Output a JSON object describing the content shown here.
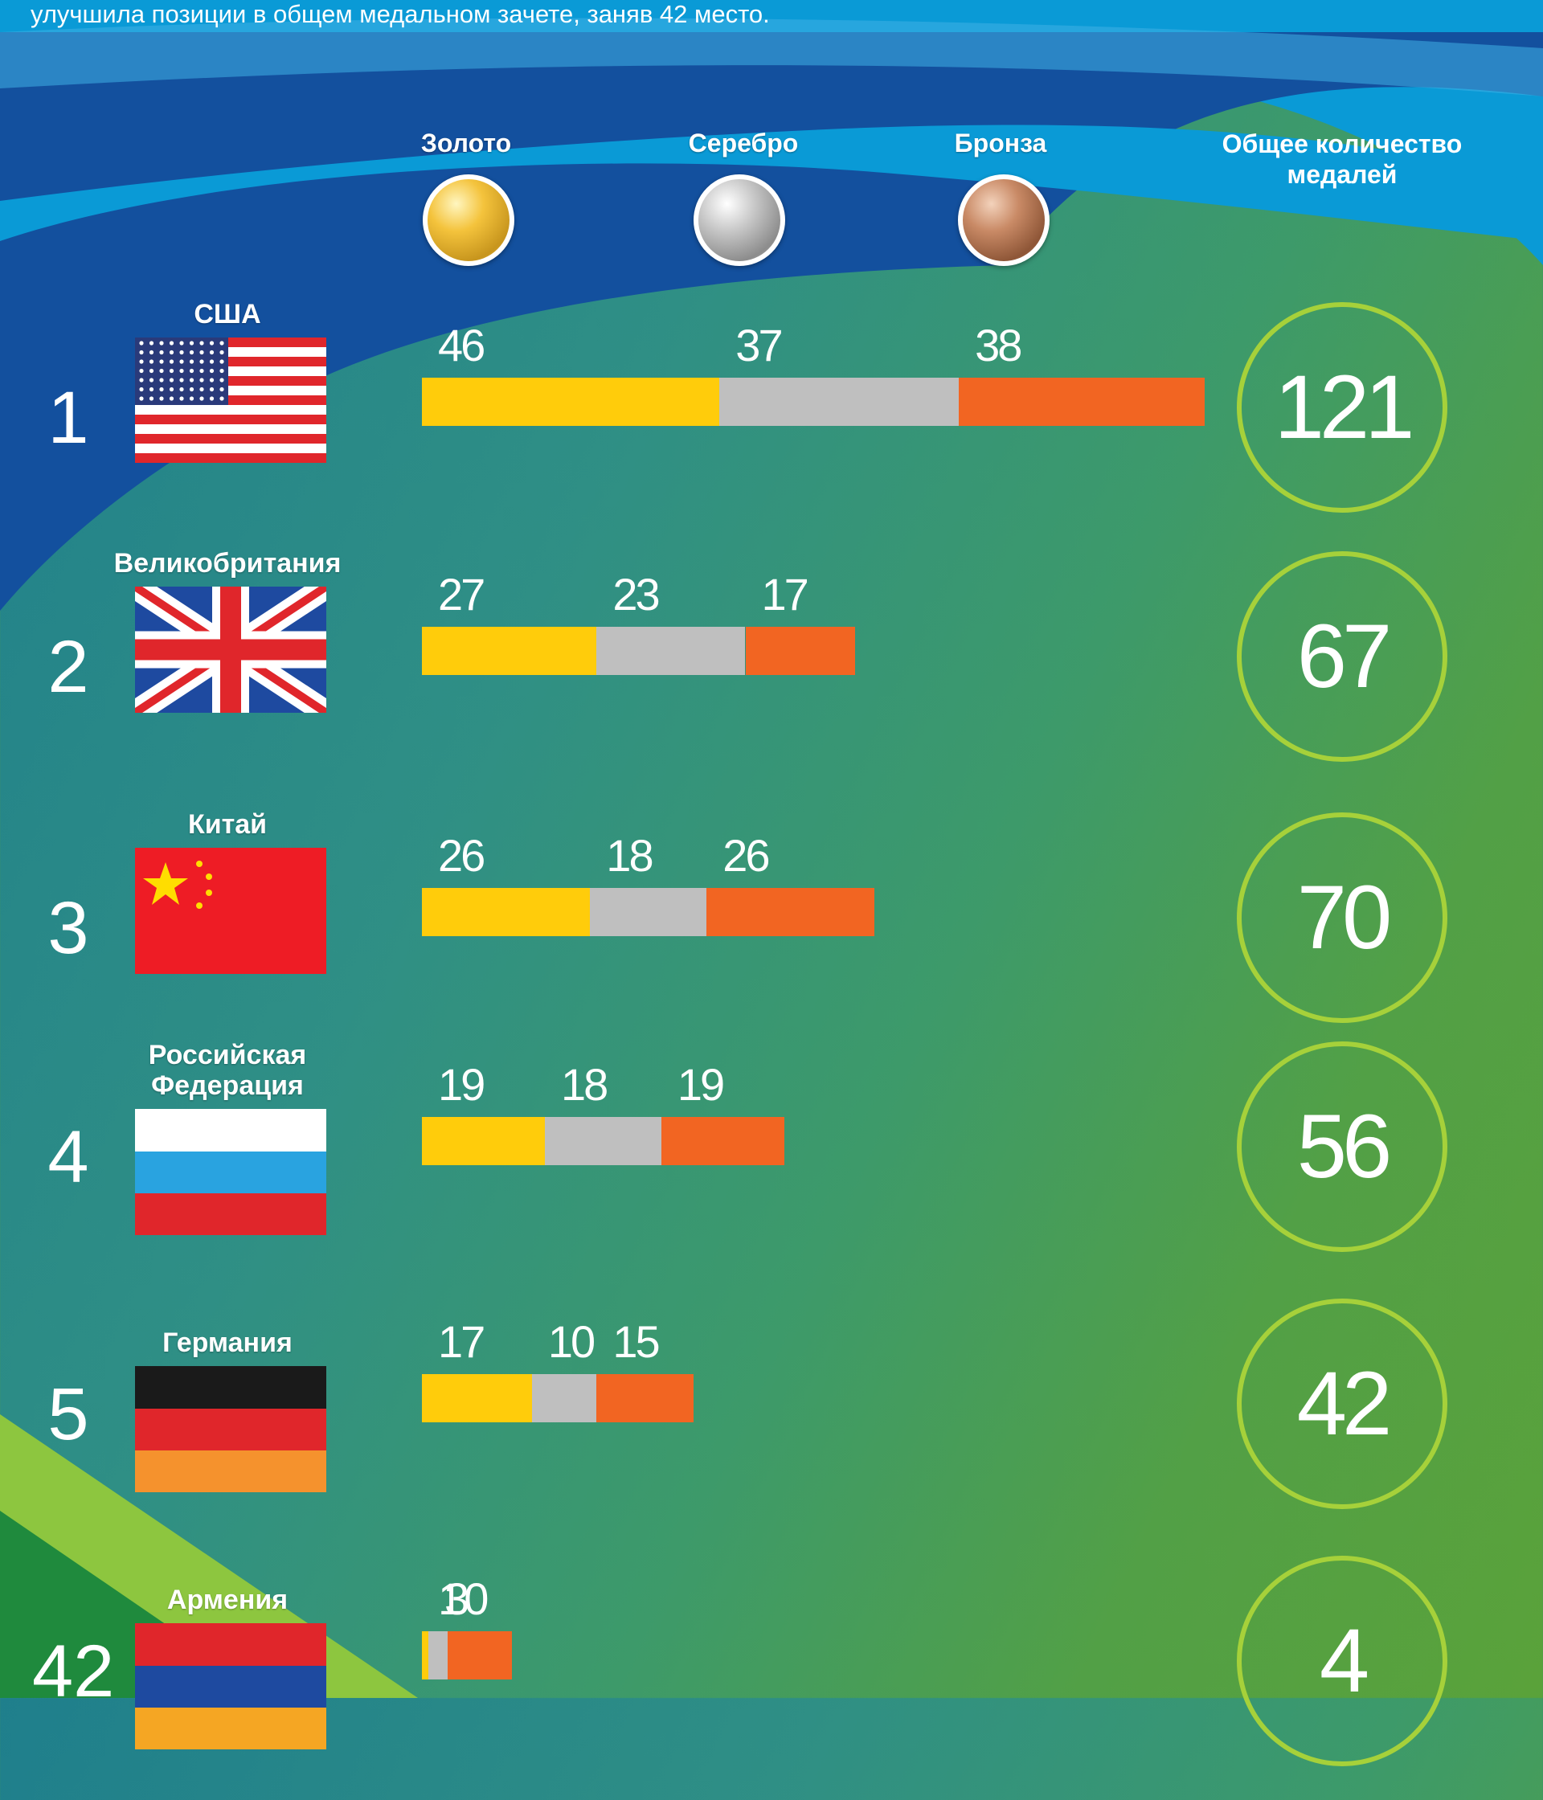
{
  "intro_line": "улучшила позиции в общем медальном зачете, заняв 42 место.",
  "headers": {
    "gold": "Золото",
    "silver": "Серебро",
    "bronze": "Бронза",
    "total": "Общее количество медалей"
  },
  "colors": {
    "gold": "#ffcc0b",
    "silver": "#bfbfbf",
    "bronze": "#f26522",
    "ring": "#a6d13a",
    "wave_light": "#0a9ad6",
    "wave_dark": "#13509e"
  },
  "countries": [
    {
      "rank": "1",
      "name": "США",
      "flag_icon": "usa-flag-icon",
      "gold": 46,
      "silver": 37,
      "bronze": 38,
      "total": 121
    },
    {
      "rank": "2",
      "name": "Великобритания",
      "flag_icon": "uk-flag-icon",
      "gold": 27,
      "silver": 23,
      "bronze": 17,
      "total": 67
    },
    {
      "rank": "3",
      "name": "Китай",
      "flag_icon": "china-flag-icon",
      "gold": 26,
      "silver": 18,
      "bronze": 26,
      "total": 70
    },
    {
      "rank": "4",
      "name": "Российская Федерация",
      "flag_icon": "russia-flag-icon",
      "gold": 19,
      "silver": 18,
      "bronze": 19,
      "total": 56
    },
    {
      "rank": "5",
      "name": "Германия",
      "flag_icon": "germany-flag-icon",
      "gold": 17,
      "silver": 10,
      "bronze": 15,
      "total": 42
    },
    {
      "rank": "42",
      "name": "Армения",
      "flag_icon": "armenia-flag-icon",
      "gold": 1,
      "silver": 3,
      "bronze": 0,
      "total": 4
    }
  ],
  "chart_data": {
    "type": "bar",
    "stacked": true,
    "orientation": "horizontal",
    "categories": [
      "США",
      "Великобритания",
      "Китай",
      "Российская Федерация",
      "Германия",
      "Армения"
    ],
    "series": [
      {
        "name": "Золото",
        "values": [
          46,
          27,
          26,
          19,
          17,
          1
        ]
      },
      {
        "name": "Серебро",
        "values": [
          37,
          23,
          18,
          18,
          10,
          3
        ]
      },
      {
        "name": "Бронза",
        "values": [
          38,
          17,
          26,
          19,
          15,
          0
        ]
      }
    ],
    "totals": [
      121,
      67,
      70,
      56,
      42,
      4
    ],
    "ranks": [
      "1",
      "2",
      "3",
      "4",
      "5",
      "42"
    ],
    "legend": "top"
  }
}
